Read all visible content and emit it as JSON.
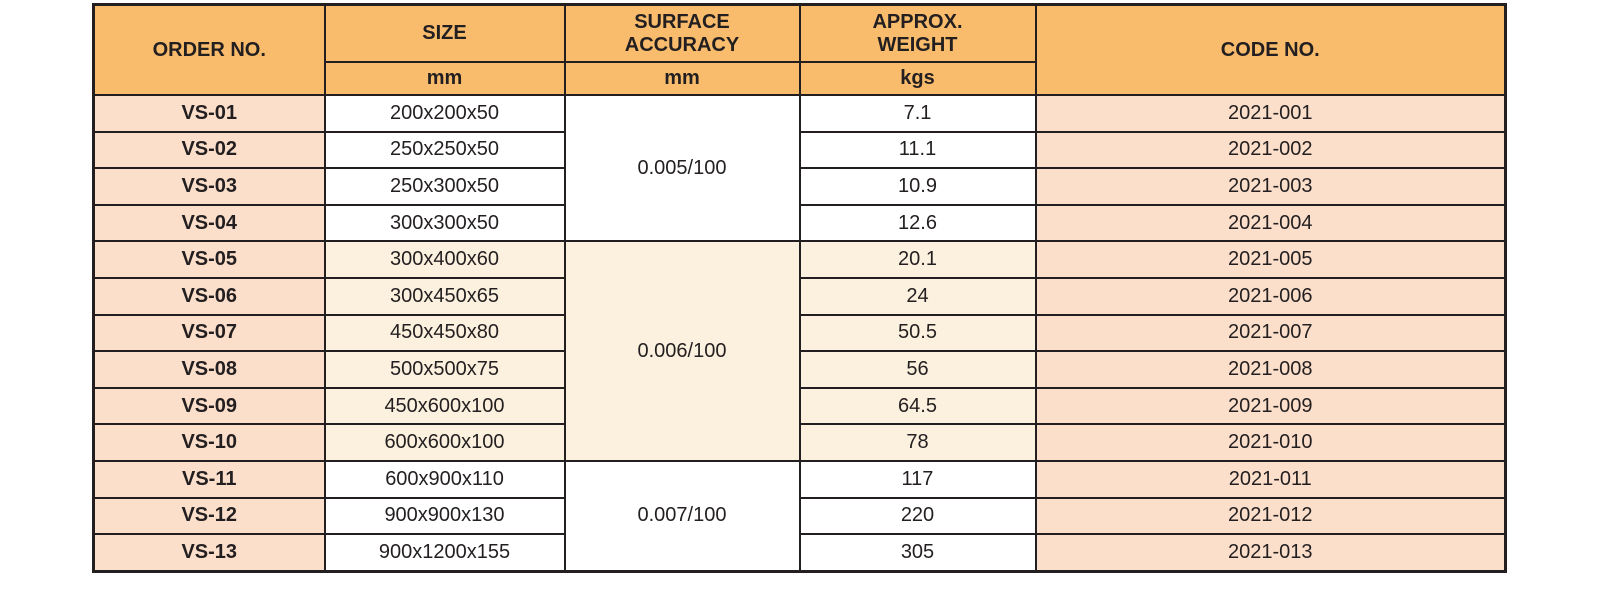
{
  "table": {
    "headers": {
      "order_no": "ORDER NO.",
      "size": "SIZE",
      "size_unit": "mm",
      "surface_accuracy": "SURFACE\nACCURACY",
      "surface_accuracy_unit": "mm",
      "approx_weight": "APPROX.\nWEIGHT",
      "approx_weight_unit": "kgs",
      "code_no": "CODE NO."
    },
    "groups": [
      {
        "surface_accuracy": "0.005/100",
        "shade": "white",
        "rows": [
          {
            "order": "VS-01",
            "size": "200x200x50",
            "weight": "7.1",
            "code": "2021-001"
          },
          {
            "order": "VS-02",
            "size": "250x250x50",
            "weight": "11.1",
            "code": "2021-002"
          },
          {
            "order": "VS-03",
            "size": "250x300x50",
            "weight": "10.9",
            "code": "2021-003"
          },
          {
            "order": "VS-04",
            "size": "300x300x50",
            "weight": "12.6",
            "code": "2021-004"
          }
        ]
      },
      {
        "surface_accuracy": "0.006/100",
        "shade": "cream",
        "rows": [
          {
            "order": "VS-05",
            "size": "300x400x60",
            "weight": "20.1",
            "code": "2021-005"
          },
          {
            "order": "VS-06",
            "size": "300x450x65",
            "weight": "24",
            "code": "2021-006"
          },
          {
            "order": "VS-07",
            "size": "450x450x80",
            "weight": "50.5",
            "code": "2021-007"
          },
          {
            "order": "VS-08",
            "size": "500x500x75",
            "weight": "56",
            "code": "2021-008"
          },
          {
            "order": "VS-09",
            "size": "450x600x100",
            "weight": "64.5",
            "code": "2021-009"
          },
          {
            "order": "VS-10",
            "size": "600x600x100",
            "weight": "78",
            "code": "2021-010"
          }
        ]
      },
      {
        "surface_accuracy": "0.007/100",
        "shade": "white",
        "rows": [
          {
            "order": "VS-11",
            "size": "600x900x110",
            "weight": "117",
            "code": "2021-011"
          },
          {
            "order": "VS-12",
            "size": "900x900x130",
            "weight": "220",
            "code": "2021-012"
          },
          {
            "order": "VS-13",
            "size": "900x1200x155",
            "weight": "305",
            "code": "2021-013"
          }
        ]
      }
    ],
    "colors": {
      "header_bg": "#F8BC6C",
      "pink": "#FBDFCB",
      "cream": "#FCF1DF",
      "white": "#FFFFFF",
      "border": "#231F20",
      "text": "#231F20"
    }
  }
}
